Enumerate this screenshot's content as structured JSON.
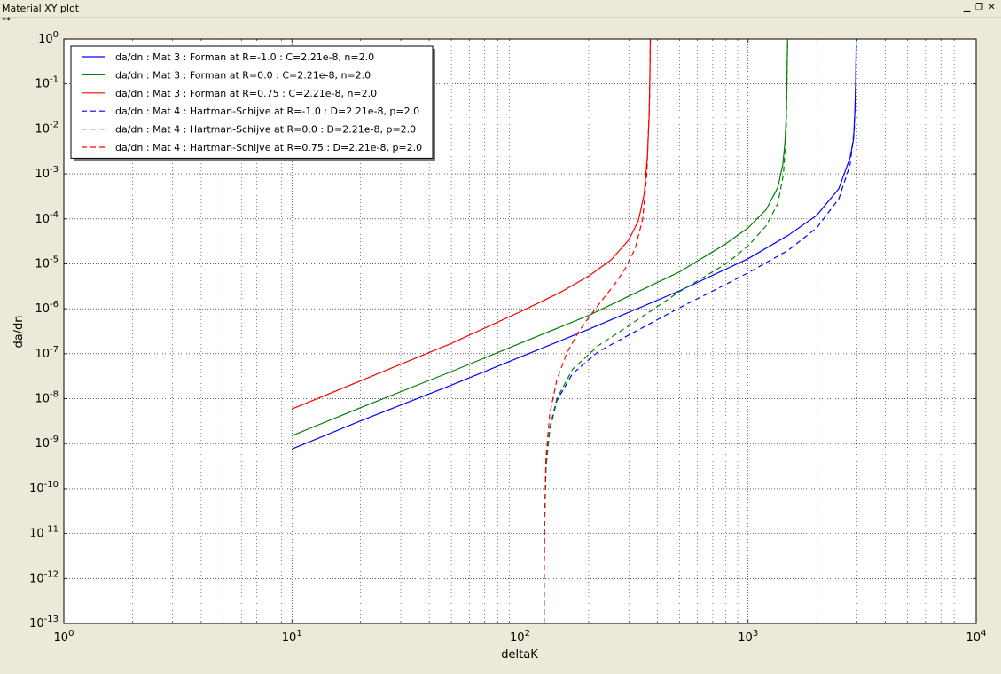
{
  "window": {
    "title": "Material XY plot",
    "status_marker": "**"
  },
  "chart_data": {
    "type": "line",
    "xlabel": "deltaK",
    "ylabel": "da/dn",
    "xscale": "log",
    "yscale": "log",
    "xlim": [
      1,
      10000
    ],
    "ylim": [
      1e-13,
      1
    ],
    "grid": true,
    "legend_position": "upper-left",
    "x_tick_labels": [
      "10^0",
      "10^1",
      "10^2",
      "10^3",
      "10^4"
    ],
    "y_tick_labels": [
      "10^-13",
      "10^-12",
      "10^-11",
      "10^-10",
      "10^-9",
      "10^-8",
      "10^-7",
      "10^-6",
      "10^-5",
      "10^-4",
      "10^-3",
      "10^-2",
      "10^-1",
      "10^0"
    ],
    "series": [
      {
        "name": "da/dn : Mat 3 : Forman at R=-1.0 : C=2.21e-8, n=2.0",
        "color": "#0000ff",
        "dash": "solid",
        "x": [
          10,
          20,
          50,
          100,
          200,
          500,
          1000,
          1500,
          2000,
          2500,
          2800,
          2900,
          2940,
          2960,
          2980
        ],
        "y": [
          7.6e-10,
          3.2e-09,
          2e-08,
          8.4e-08,
          3.5e-07,
          2.5e-06,
          1.3e-05,
          4.3e-05,
          0.00012,
          0.00047,
          0.0023,
          0.006,
          0.025,
          0.1,
          1
        ]
      },
      {
        "name": "da/dn : Mat 3 : Forman at R=0.0 : C=2.21e-8, n=2.0",
        "color": "#008000",
        "dash": "solid",
        "x": [
          10,
          20,
          50,
          100,
          200,
          500,
          800,
          1000,
          1200,
          1350,
          1420,
          1450,
          1470,
          1480,
          1490
        ],
        "y": [
          1.5e-09,
          6.3e-09,
          4e-08,
          1.7e-07,
          7.1e-07,
          6.6e-06,
          2.8e-05,
          6.3e-05,
          0.00016,
          0.0005,
          0.0016,
          0.005,
          0.02,
          0.1,
          1
        ]
      },
      {
        "name": "da/dn : Mat 3 : Forman at R=0.75 : C=2.21e-8, n=2.0",
        "color": "#ff0000",
        "dash": "solid",
        "x": [
          10,
          20,
          50,
          100,
          150,
          200,
          250,
          300,
          330,
          350,
          362,
          368,
          371,
          372.5
        ],
        "y": [
          5.9e-09,
          2.5e-08,
          1.7e-07,
          8.5e-07,
          2.3e-06,
          5.3e-06,
          1.2e-05,
          3.4e-05,
          9e-05,
          0.00035,
          0.0025,
          0.018,
          0.15,
          1
        ]
      },
      {
        "name": "da/dn : Mat 4 : Hartman-Schijve at R=-1.0 : D=2.21e-8, p=2.0",
        "color": "#0000ff",
        "dash": "dashed",
        "x": [
          127.5,
          128,
          130,
          135,
          145,
          170,
          220,
          300,
          500,
          800,
          1000,
          1500,
          2000,
          2500,
          2800,
          2920,
          2965,
          2985
        ],
        "y": [
          1e-13,
          1.4e-11,
          3e-10,
          2e-09,
          9e-09,
          3.6e-08,
          1.1e-07,
          2.6e-07,
          1.05e-06,
          3.5e-06,
          6.3e-06,
          2e-05,
          6.3e-05,
          0.00028,
          0.0016,
          0.01,
          0.1,
          1
        ]
      },
      {
        "name": "da/dn : Mat 4 : Hartman-Schijve at R=0.0 : D=2.21e-8, p=2.0",
        "color": "#008000",
        "dash": "dashed",
        "x": [
          127.5,
          128,
          130,
          135,
          145,
          170,
          220,
          300,
          500,
          800,
          1000,
          1200,
          1350,
          1430,
          1470,
          1490
        ],
        "y": [
          1e-13,
          1.4e-11,
          3e-10,
          2.2e-09,
          1e-08,
          4.5e-08,
          1.5e-07,
          4.2e-07,
          2.4e-06,
          1e-05,
          2.5e-05,
          7e-05,
          0.00022,
          0.001,
          0.01,
          1
        ]
      },
      {
        "name": "da/dn : Mat 4 : Hartman-Schijve at R=0.75 : D=2.21e-8, p=2.0",
        "color": "#ff0000",
        "dash": "dashed",
        "x": [
          127.5,
          128,
          130,
          135,
          145,
          160,
          180,
          200,
          230,
          260,
          290,
          320,
          345,
          360,
          370,
          373
        ],
        "y": [
          1e-13,
          1.4e-11,
          5e-10,
          4.5e-09,
          2.6e-08,
          1e-07,
          3e-07,
          6.3e-07,
          1.6e-06,
          3.5e-06,
          8e-06,
          2.2e-05,
          0.0001,
          0.001,
          0.05,
          1
        ]
      }
    ]
  }
}
